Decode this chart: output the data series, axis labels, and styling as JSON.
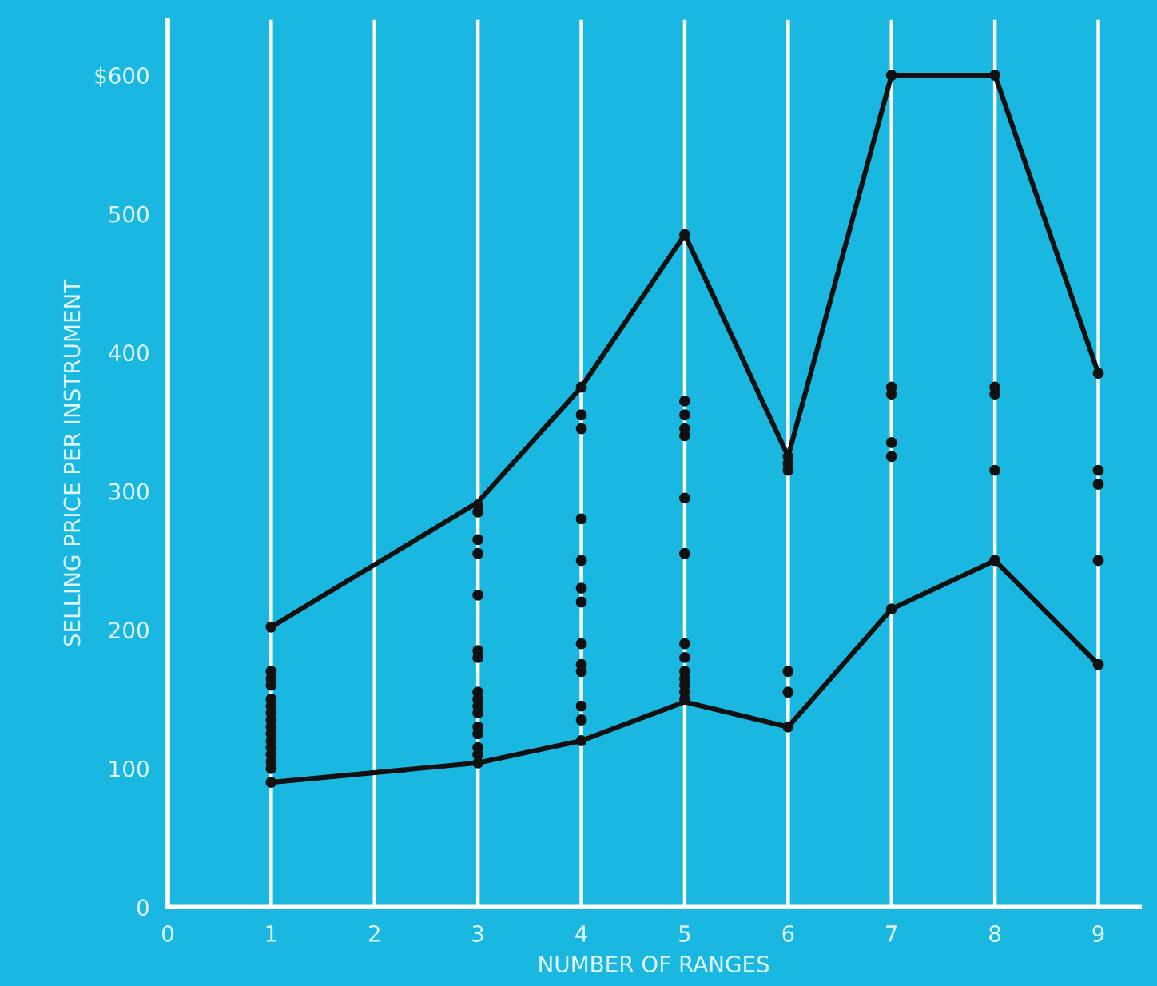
{
  "chart_data": {
    "type": "scatter",
    "xlabel": "NUMBER OF RANGES",
    "ylabel": "SELLING PRICE PER INSTRUMENT",
    "xlim": [
      0,
      9.4
    ],
    "ylim": [
      0,
      640
    ],
    "xticks": [
      0,
      1,
      2,
      3,
      4,
      5,
      6,
      7,
      8,
      9
    ],
    "yticks": [
      0,
      100,
      200,
      300,
      400,
      500,
      {
        "value": 600,
        "label": "$600"
      }
    ],
    "grid": "x",
    "legend": false,
    "marker": "circle",
    "series": [
      {
        "color": "#111111",
        "x": [
          1,
          1,
          1,
          1,
          1,
          1,
          1,
          1,
          1,
          1,
          1,
          1,
          1,
          1,
          1,
          1,
          3,
          3,
          3,
          3,
          3,
          3,
          3,
          3,
          3,
          3,
          3,
          3,
          3,
          3,
          3,
          3,
          4,
          4,
          4,
          4,
          4,
          4,
          4,
          4,
          4,
          4,
          4,
          4,
          4,
          5,
          5,
          5,
          5,
          5,
          5,
          5,
          5,
          5,
          5,
          5,
          5,
          5,
          5,
          6,
          6,
          6,
          6,
          6,
          6,
          7,
          7,
          7,
          7,
          7,
          7,
          8,
          8,
          8,
          8,
          8,
          9,
          9,
          9,
          9,
          9
        ],
        "values": [
          90,
          100,
          105,
          110,
          115,
          120,
          125,
          130,
          135,
          140,
          145,
          150,
          160,
          165,
          170,
          202,
          290,
          285,
          265,
          255,
          225,
          185,
          180,
          155,
          150,
          145,
          140,
          130,
          125,
          115,
          110,
          104,
          375,
          355,
          345,
          280,
          250,
          230,
          220,
          190,
          175,
          170,
          145,
          135,
          120,
          485,
          365,
          355,
          345,
          340,
          295,
          255,
          190,
          180,
          170,
          165,
          160,
          155,
          150,
          325,
          320,
          315,
          170,
          155,
          130,
          600,
          375,
          370,
          335,
          325,
          215,
          600,
          375,
          370,
          315,
          250,
          385,
          315,
          305,
          250,
          175
        ]
      },
      {
        "type": "line",
        "color": "#111111",
        "marker": "none",
        "line_style": "solid",
        "x": [
          1,
          3,
          4,
          5,
          6,
          7,
          8,
          9
        ],
        "values": [
          202,
          292,
          375,
          485,
          325,
          600,
          600,
          385
        ]
      },
      {
        "type": "line",
        "color": "#111111",
        "marker": "none",
        "line_style": "solid",
        "x": [
          1,
          3,
          4,
          5,
          6,
          7,
          8,
          9
        ],
        "values": [
          90,
          104,
          120,
          148,
          130,
          215,
          250,
          175
        ]
      }
    ]
  }
}
